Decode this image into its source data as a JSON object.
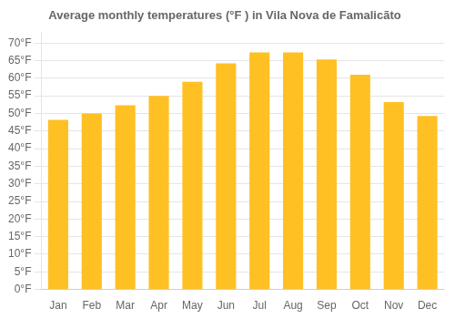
{
  "chart_data": {
    "type": "bar",
    "title": "Average monthly temperatures (°F ) in Vila Nova de Famalicãto",
    "categories": [
      "Jan",
      "Feb",
      "Mar",
      "Apr",
      "May",
      "Jun",
      "Jul",
      "Aug",
      "Sep",
      "Oct",
      "Nov",
      "Dec"
    ],
    "values": [
      48.2,
      50.0,
      52.3,
      55.0,
      59.0,
      64.2,
      67.3,
      67.3,
      65.3,
      61.0,
      53.2,
      49.3
    ],
    "color": "#FFC024",
    "ylim": [
      0,
      73
    ],
    "yticks": [
      {
        "value": 0,
        "label": "0°F"
      },
      {
        "value": 5,
        "label": "5°F"
      },
      {
        "value": 10,
        "label": "10°F"
      },
      {
        "value": 15,
        "label": "15°F"
      },
      {
        "value": 20,
        "label": "20°F"
      },
      {
        "value": 25,
        "label": "25°F"
      },
      {
        "value": 30,
        "label": "30°F"
      },
      {
        "value": 35,
        "label": "35°F"
      },
      {
        "value": 40,
        "label": "40°F"
      },
      {
        "value": 45,
        "label": "45°F"
      },
      {
        "value": 50,
        "label": "50°F"
      },
      {
        "value": 55,
        "label": "55°F"
      },
      {
        "value": 60,
        "label": "60°F"
      },
      {
        "value": 65,
        "label": "65°F"
      },
      {
        "value": 70,
        "label": "70°F"
      }
    ],
    "grid": true
  }
}
